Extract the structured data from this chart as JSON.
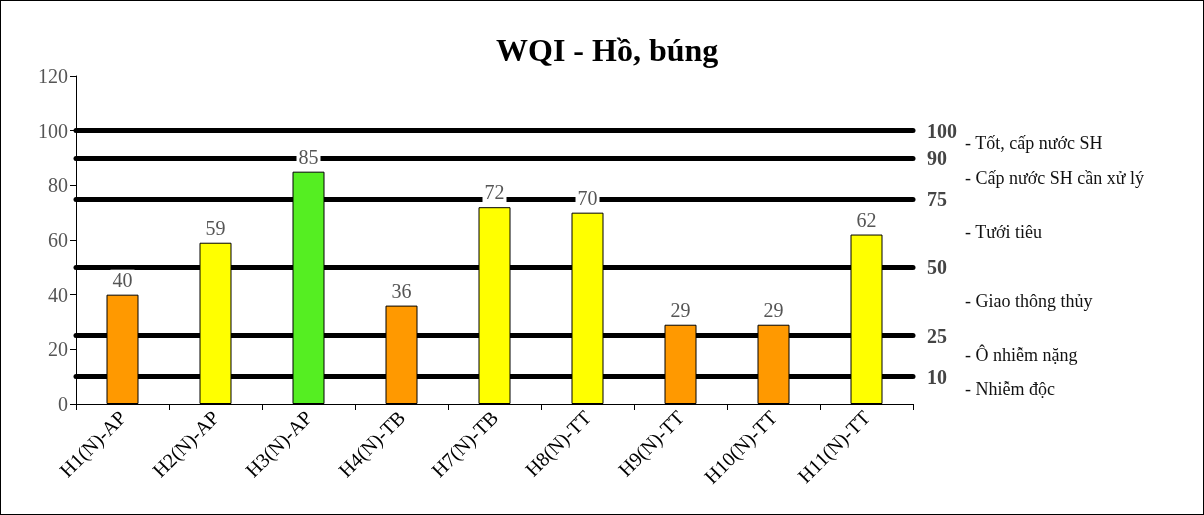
{
  "chart_data": {
    "type": "bar",
    "title": "WQI - Hồ, búng",
    "categories": [
      "H1(N)-AP",
      "H2(N)-AP",
      "H3(N)-AP",
      "H4(N)-TB",
      "H7(N)-TB",
      "H8(N)-TT",
      "H9(N)-TT",
      "H10(N)-TT",
      "H11(N)-TT"
    ],
    "values": [
      40,
      59,
      85,
      36,
      72,
      70,
      29,
      29,
      62
    ],
    "colors": [
      "#ff9900",
      "#ffff00",
      "#55ee22",
      "#ff9900",
      "#ffff00",
      "#ffff00",
      "#ff9900",
      "#ff9900",
      "#ffff00"
    ],
    "data_labels": true,
    "grid": false,
    "ylim": [
      0,
      120
    ],
    "yticks": [
      0,
      20,
      40,
      60,
      80,
      100,
      120
    ],
    "ref_lines": [
      {
        "axis": "y",
        "value": 100,
        "label": "100",
        "color": "#000000"
      },
      {
        "axis": "y",
        "value": 90,
        "label": "90",
        "color": "#000000"
      },
      {
        "axis": "y",
        "value": 75,
        "label": "75",
        "color": "#000000"
      },
      {
        "axis": "y",
        "value": 50,
        "label": "50",
        "color": "#000000"
      },
      {
        "axis": "y",
        "value": 25,
        "label": "25",
        "color": "#000000"
      },
      {
        "axis": "y",
        "value": 10,
        "label": "10",
        "color": "#000000"
      }
    ],
    "annotations": [
      "- Tốt, cấp nước SH",
      "- Cấp nước SH cần xử lý",
      "- Tưới tiêu",
      "- Giao thông thủy",
      "- Ô nhiễm nặng",
      "- Nhiễm độc"
    ]
  }
}
